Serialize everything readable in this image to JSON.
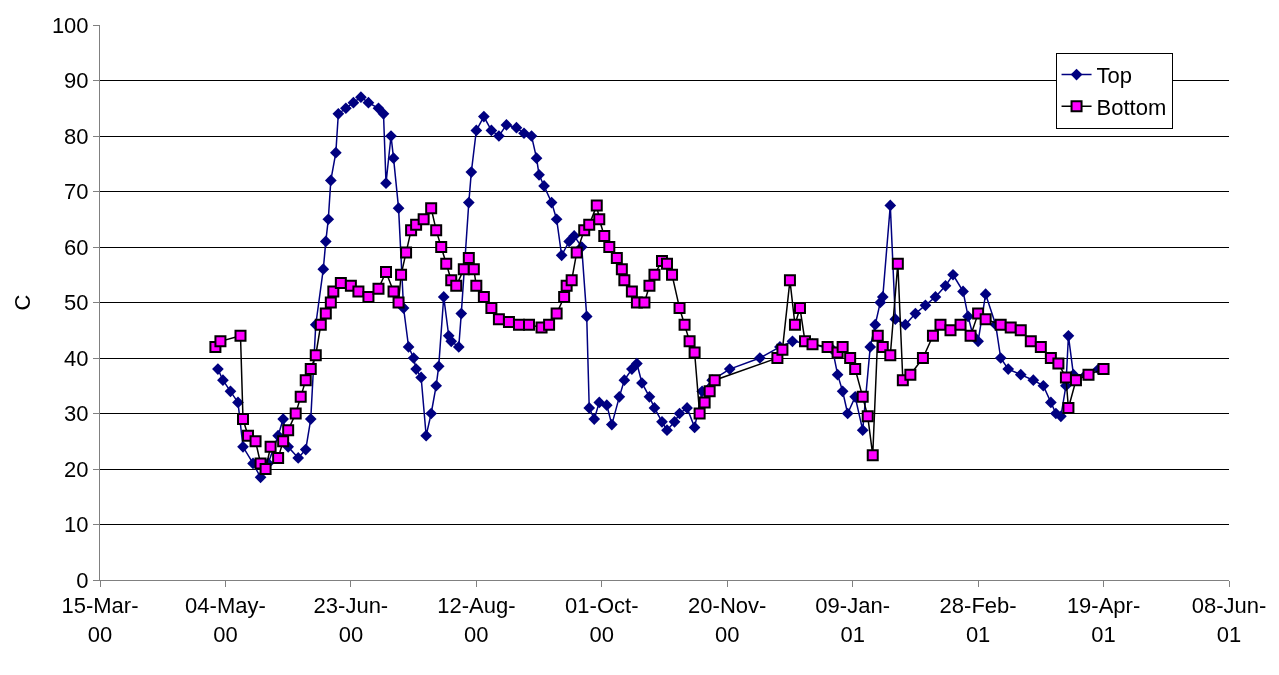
{
  "chart_data": {
    "type": "line",
    "ylabel": "C",
    "xlim": [
      "2000-03-15",
      "2001-06-08"
    ],
    "ylim": [
      0,
      100
    ],
    "xticks": [
      {
        "value": "2000-03-15",
        "label": "15-Mar-\n00"
      },
      {
        "value": "2000-05-04",
        "label": "04-May-\n00"
      },
      {
        "value": "2000-06-23",
        "label": "23-Jun-\n00"
      },
      {
        "value": "2000-08-12",
        "label": "12-Aug-\n00"
      },
      {
        "value": "2000-10-01",
        "label": "01-Oct-\n00"
      },
      {
        "value": "2000-11-20",
        "label": "20-Nov-\n00"
      },
      {
        "value": "2001-01-09",
        "label": "09-Jan-\n01"
      },
      {
        "value": "2001-02-28",
        "label": "28-Feb-\n01"
      },
      {
        "value": "2001-04-19",
        "label": "19-Apr-\n01"
      },
      {
        "value": "2001-06-08",
        "label": "08-Jun-\n01"
      }
    ],
    "yticks": [
      0,
      10,
      20,
      30,
      40,
      50,
      60,
      70,
      80,
      90,
      100
    ],
    "grid": "y",
    "legend": "top right",
    "series": [
      {
        "name": "Top",
        "color": "#000080",
        "marker": "diamond",
        "x": [
          "2000-05-01",
          "2000-05-03",
          "2000-05-06",
          "2000-05-09",
          "2000-05-11",
          "2000-05-15",
          "2000-05-18",
          "2000-05-21",
          "2000-05-25",
          "2000-05-27",
          "2000-05-29",
          "2000-06-02",
          "2000-06-05",
          "2000-06-07",
          "2000-06-09",
          "2000-06-12",
          "2000-06-13",
          "2000-06-14",
          "2000-06-15",
          "2000-06-17",
          "2000-06-18",
          "2000-06-21",
          "2000-06-24",
          "2000-06-27",
          "2000-06-30",
          "2000-07-04",
          "2000-07-06",
          "2000-07-07",
          "2000-07-09",
          "2000-07-10",
          "2000-07-12",
          "2000-07-14",
          "2000-07-16",
          "2000-07-18",
          "2000-07-19",
          "2000-07-21",
          "2000-07-23",
          "2000-07-25",
          "2000-07-27",
          "2000-07-28",
          "2000-07-30",
          "2000-08-01",
          "2000-08-02",
          "2000-08-05",
          "2000-08-06",
          "2000-08-09",
          "2000-08-10",
          "2000-08-12",
          "2000-08-15",
          "2000-08-18",
          "2000-08-21",
          "2000-08-24",
          "2000-08-28",
          "2000-08-31",
          "2000-09-03",
          "2000-09-05",
          "2000-09-06",
          "2000-09-08",
          "2000-09-11",
          "2000-09-13",
          "2000-09-15",
          "2000-09-18",
          "2000-09-20",
          "2000-09-23",
          "2000-09-25",
          "2000-09-26",
          "2000-09-28",
          "2000-09-30",
          "2000-10-03",
          "2000-10-05",
          "2000-10-08",
          "2000-10-10",
          "2000-10-13",
          "2000-10-15",
          "2000-10-17",
          "2000-10-20",
          "2000-10-22",
          "2000-10-25",
          "2000-10-27",
          "2000-10-30",
          "2000-11-01",
          "2000-11-04",
          "2000-11-07",
          "2000-11-10",
          "2000-11-14",
          "2000-11-21",
          "2000-12-03",
          "2000-12-11",
          "2000-12-16",
          "2000-12-24",
          "2001-01-01",
          "2001-01-03",
          "2001-01-05",
          "2001-01-07",
          "2001-01-10",
          "2001-01-13",
          "2001-01-16",
          "2001-01-18",
          "2001-01-20",
          "2001-01-21",
          "2001-01-24",
          "2001-01-26",
          "2001-01-30",
          "2001-02-03",
          "2001-02-07",
          "2001-02-11",
          "2001-02-15",
          "2001-02-18",
          "2001-02-22",
          "2001-02-24",
          "2001-02-26",
          "2001-02-28",
          "2001-03-03",
          "2001-03-07",
          "2001-03-09",
          "2001-03-12",
          "2001-03-17",
          "2001-03-22",
          "2001-03-26",
          "2001-03-29",
          "2001-03-31",
          "2001-04-02",
          "2001-04-04",
          "2001-04-05",
          "2001-04-07",
          "2001-04-12",
          "2001-04-17"
        ],
        "values": [
          38,
          36,
          34,
          32,
          24,
          21,
          18.5,
          21,
          26,
          29,
          24,
          22,
          23.5,
          29,
          46,
          56,
          61,
          65,
          72,
          77,
          84,
          85,
          86,
          87,
          86,
          85,
          84,
          71.5,
          80,
          76,
          67,
          49,
          42,
          40,
          38,
          36.5,
          26,
          30,
          35,
          38.5,
          51,
          44,
          43,
          42,
          48,
          68,
          73.5,
          81,
          83.5,
          81,
          80,
          82,
          81.5,
          80.5,
          80,
          76,
          73,
          71,
          68,
          65,
          58.5,
          61,
          62,
          60,
          47.5,
          31,
          29,
          32,
          31.5,
          28,
          33,
          36,
          38,
          39,
          35.5,
          33,
          31,
          28.5,
          27,
          28.5,
          30,
          31,
          27.5,
          34,
          36,
          38,
          40,
          42,
          43,
          42.5,
          41.5,
          37,
          34,
          30,
          33,
          27,
          42,
          46,
          50,
          51,
          67.5,
          47,
          46,
          48,
          49.5,
          51,
          53,
          55,
          52,
          47.5,
          44,
          43,
          51.5,
          46,
          40,
          38,
          37,
          36,
          35,
          32,
          30,
          29.5,
          35,
          44,
          37,
          37,
          38
        ]
      },
      {
        "name": "Bottom",
        "color": "#ff00ff",
        "marker": "square",
        "x": [
          "2000-04-30",
          "2000-05-02",
          "2000-05-10",
          "2000-05-11",
          "2000-05-13",
          "2000-05-16",
          "2000-05-18",
          "2000-05-20",
          "2000-05-22",
          "2000-05-25",
          "2000-05-27",
          "2000-05-29",
          "2000-06-01",
          "2000-06-03",
          "2000-06-05",
          "2000-06-07",
          "2000-06-09",
          "2000-06-11",
          "2000-06-13",
          "2000-06-15",
          "2000-06-16",
          "2000-06-19",
          "2000-06-23",
          "2000-06-26",
          "2000-06-30",
          "2000-07-04",
          "2000-07-07",
          "2000-07-10",
          "2000-07-12",
          "2000-07-13",
          "2000-07-15",
          "2000-07-17",
          "2000-07-19",
          "2000-07-22",
          "2000-07-25",
          "2000-07-27",
          "2000-07-29",
          "2000-07-31",
          "2000-08-02",
          "2000-08-04",
          "2000-08-07",
          "2000-08-09",
          "2000-08-11",
          "2000-08-12",
          "2000-08-15",
          "2000-08-18",
          "2000-08-21",
          "2000-08-25",
          "2000-08-29",
          "2000-09-02",
          "2000-09-07",
          "2000-09-10",
          "2000-09-13",
          "2000-09-16",
          "2000-09-17",
          "2000-09-19",
          "2000-09-21",
          "2000-09-24",
          "2000-09-26",
          "2000-09-29",
          "2000-09-30",
          "2000-10-02",
          "2000-10-04",
          "2000-10-07",
          "2000-10-09",
          "2000-10-10",
          "2000-10-13",
          "2000-10-15",
          "2000-10-18",
          "2000-10-20",
          "2000-10-22",
          "2000-10-25",
          "2000-10-27",
          "2000-10-29",
          "2000-11-01",
          "2000-11-03",
          "2000-11-05",
          "2000-11-07",
          "2000-11-09",
          "2000-11-11",
          "2000-11-13",
          "2000-11-15",
          "2000-12-10",
          "2000-12-12",
          "2000-12-15",
          "2000-12-17",
          "2000-12-19",
          "2000-12-21",
          "2000-12-24",
          "2000-12-30",
          "2001-01-03",
          "2001-01-05",
          "2001-01-08",
          "2001-01-10",
          "2001-01-13",
          "2001-01-15",
          "2001-01-17",
          "2001-01-19",
          "2001-01-21",
          "2001-01-24",
          "2001-01-27",
          "2001-01-29",
          "2001-02-01",
          "2001-02-06",
          "2001-02-10",
          "2001-02-13",
          "2001-02-17",
          "2001-02-21",
          "2001-02-25",
          "2001-02-28",
          "2001-03-03",
          "2001-03-09",
          "2001-03-13",
          "2001-03-17",
          "2001-03-21",
          "2001-03-25",
          "2001-03-29",
          "2001-04-01",
          "2001-04-04",
          "2001-04-05",
          "2001-04-08",
          "2001-04-13",
          "2001-04-19"
        ],
        "values": [
          42,
          43,
          44,
          29,
          26,
          25,
          21,
          20,
          24,
          22,
          25,
          27,
          30,
          33,
          36,
          38,
          40.5,
          46,
          48,
          50,
          52,
          53.5,
          53,
          52,
          51,
          52.5,
          55.5,
          52,
          50,
          55,
          59,
          63,
          64,
          65,
          67,
          63,
          60,
          57,
          54,
          53,
          56,
          58,
          56,
          53,
          51,
          49,
          47,
          46.5,
          46,
          46,
          45.5,
          46,
          48,
          51,
          53,
          54,
          59,
          63,
          64,
          67.5,
          65,
          62,
          60,
          58,
          56,
          54,
          52,
          50,
          50,
          53,
          55,
          57.5,
          57,
          55,
          49,
          46,
          43,
          41,
          30,
          32,
          34,
          36,
          40,
          41.5,
          54,
          46,
          49,
          43,
          42.5,
          42,
          41,
          42,
          40,
          38,
          33,
          29.5,
          22.5,
          44,
          42,
          40.5,
          57,
          36,
          37,
          40,
          44,
          46,
          45,
          46,
          44,
          48,
          47,
          46,
          45.5,
          45,
          43,
          42,
          40,
          39,
          36.5,
          31,
          36,
          37,
          38
        ]
      }
    ]
  }
}
